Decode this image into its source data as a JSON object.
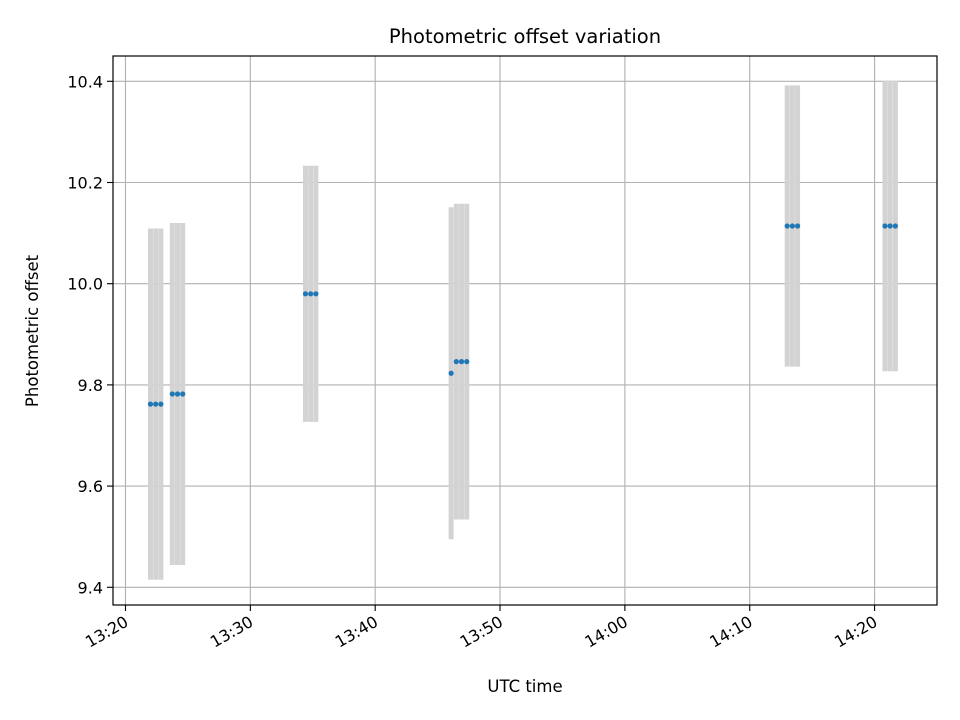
{
  "chart_data": {
    "type": "scatter",
    "title": "Photometric offset variation",
    "xlabel": "UTC time",
    "ylabel": "Photometric offset",
    "x_axis": {
      "kind": "time",
      "range": [
        "13:19",
        "14:25"
      ],
      "ticks": [
        "13:20",
        "13:30",
        "13:40",
        "13:50",
        "14:00",
        "14:10",
        "14:20"
      ]
    },
    "y_axis": {
      "range": [
        9.365,
        10.45
      ],
      "ticks": [
        9.4,
        9.6,
        9.8,
        10.0,
        10.2,
        10.4
      ],
      "tick_labels": [
        "9.4",
        "9.6",
        "9.8",
        "10.0",
        "10.2",
        "10.4"
      ]
    },
    "grid": true,
    "colors": {
      "points": "#1f77b4",
      "error_bars": "#d3d3d3",
      "grid": "#b0b0b0"
    },
    "points": [
      {
        "x": "13:22:00",
        "y": 9.762,
        "err": 0.347
      },
      {
        "x": "13:22:25",
        "y": 9.762,
        "err": 0.347
      },
      {
        "x": "13:22:50",
        "y": 9.762,
        "err": 0.347
      },
      {
        "x": "13:23:45",
        "y": 9.782,
        "err": 0.338
      },
      {
        "x": "13:24:10",
        "y": 9.782,
        "err": 0.338
      },
      {
        "x": "13:24:35",
        "y": 9.782,
        "err": 0.338
      },
      {
        "x": "13:34:25",
        "y": 9.98,
        "err": 0.253
      },
      {
        "x": "13:34:50",
        "y": 9.98,
        "err": 0.253
      },
      {
        "x": "13:35:15",
        "y": 9.98,
        "err": 0.253
      },
      {
        "x": "13:46:05",
        "y": 9.823,
        "err": 0.328
      },
      {
        "x": "13:46:30",
        "y": 9.846,
        "err": 0.312
      },
      {
        "x": "13:46:55",
        "y": 9.846,
        "err": 0.312
      },
      {
        "x": "13:47:20",
        "y": 9.846,
        "err": 0.312
      },
      {
        "x": "14:13:00",
        "y": 10.114,
        "err": 0.278
      },
      {
        "x": "14:13:25",
        "y": 10.114,
        "err": 0.278
      },
      {
        "x": "14:13:50",
        "y": 10.114,
        "err": 0.278
      },
      {
        "x": "14:20:50",
        "y": 10.114,
        "err": 0.287
      },
      {
        "x": "14:21:15",
        "y": 10.114,
        "err": 0.287
      },
      {
        "x": "14:21:40",
        "y": 10.114,
        "err": 0.287
      }
    ]
  }
}
